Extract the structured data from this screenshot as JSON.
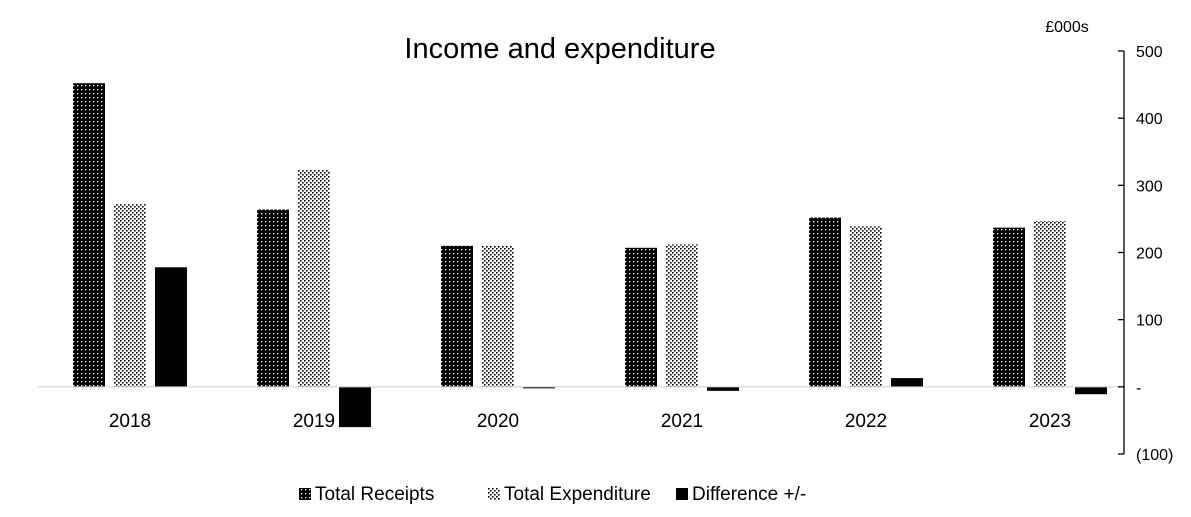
{
  "chart_data": {
    "type": "bar",
    "title": "Income and expenditure",
    "unit_label": "£000s",
    "categories": [
      "2018",
      "2019",
      "2020",
      "2021",
      "2022",
      "2023"
    ],
    "series": [
      {
        "name": "Total Receipts",
        "values": [
          452,
          264,
          210,
          207,
          252,
          237
        ],
        "color": "#000000",
        "pattern": "dense-dots"
      },
      {
        "name": "Total Expenditure",
        "values": [
          272,
          323,
          210,
          212,
          239,
          247
        ],
        "color": "#000000",
        "pattern": "light-dots"
      },
      {
        "name": "Difference +/-",
        "values": [
          178,
          -60,
          -2,
          -6,
          13,
          -11
        ],
        "color": "#000000",
        "pattern": "solid"
      }
    ],
    "ylim": [
      -100,
      500
    ],
    "yticks": [
      {
        "value": 500,
        "label": "500"
      },
      {
        "value": 400,
        "label": "400"
      },
      {
        "value": 300,
        "label": "300"
      },
      {
        "value": 200,
        "label": "200"
      },
      {
        "value": 100,
        "label": "100"
      },
      {
        "value": 0,
        "label": "-"
      },
      {
        "value": -100,
        "label": "(100)"
      }
    ],
    "y_axis_side": "right",
    "grid": false,
    "legend_position": "bottom"
  }
}
